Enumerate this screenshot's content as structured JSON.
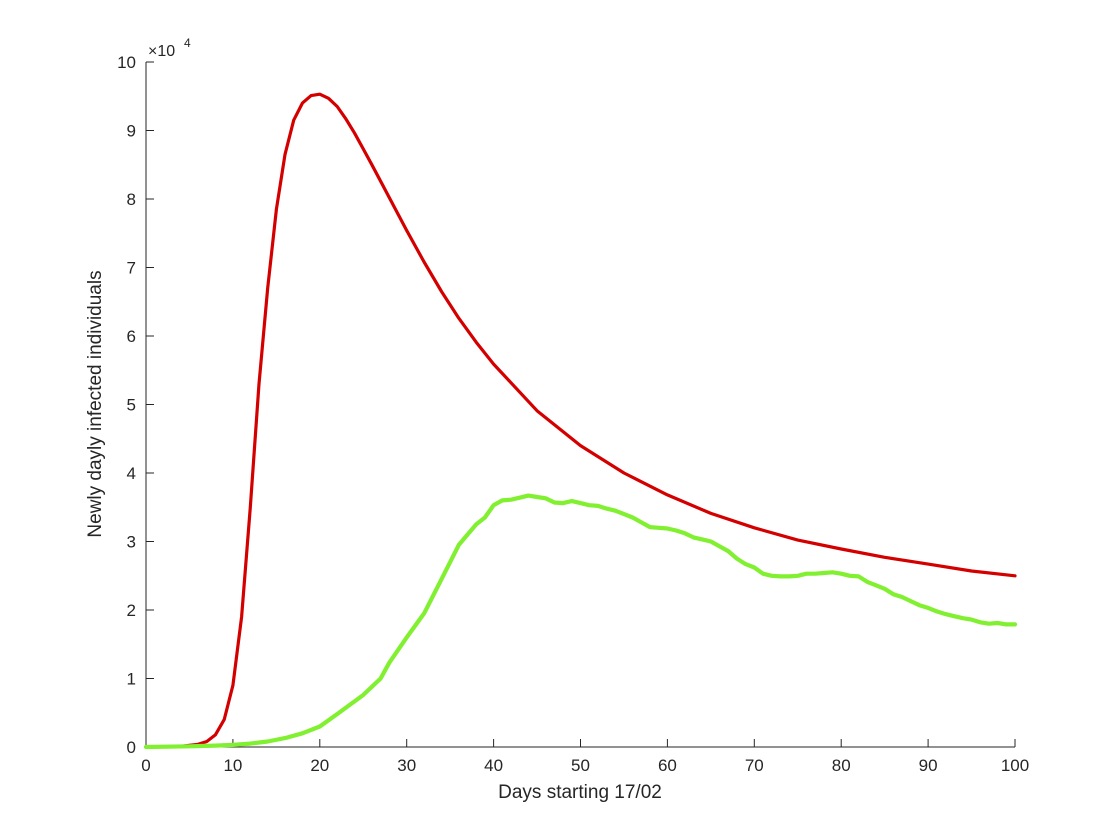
{
  "chart_data": {
    "type": "line",
    "xlabel": "Days starting 17/02",
    "ylabel": "Newly dayly infected individuals",
    "y_multiplier_base": "×10",
    "y_multiplier_exp": "4",
    "xlim": [
      0,
      100
    ],
    "ylim": [
      0,
      100000
    ],
    "x_ticks": [
      0,
      10,
      20,
      30,
      40,
      50,
      60,
      70,
      80,
      90,
      100
    ],
    "x_tick_labels": [
      "0",
      "10",
      "20",
      "30",
      "40",
      "50",
      "60",
      "70",
      "80",
      "90",
      "100"
    ],
    "y_ticks": [
      0,
      10000,
      20000,
      30000,
      40000,
      50000,
      60000,
      70000,
      80000,
      90000,
      100000
    ],
    "y_tick_labels": [
      "0",
      "1",
      "2",
      "3",
      "4",
      "5",
      "6",
      "7",
      "8",
      "9",
      "10"
    ],
    "grid": false,
    "series": [
      {
        "color": "#d40000",
        "x": [
          0,
          4,
          6,
          7,
          8,
          9,
          10,
          11,
          12,
          13,
          14,
          15,
          16,
          17,
          18,
          19,
          20,
          21,
          22,
          23,
          24,
          25,
          26,
          28,
          30,
          32,
          34,
          36,
          38,
          40,
          45,
          50,
          55,
          60,
          65,
          70,
          75,
          80,
          85,
          90,
          95,
          100
        ],
        "y": [
          0,
          100,
          400,
          800,
          1800,
          4000,
          9000,
          19000,
          35000,
          53000,
          67000,
          78500,
          86500,
          91500,
          94000,
          95100,
          95300,
          94700,
          93500,
          91700,
          89600,
          87300,
          85000,
          80200,
          75400,
          70800,
          66500,
          62600,
          59100,
          55900,
          49100,
          44000,
          40000,
          36800,
          34100,
          32000,
          30200,
          28900,
          27700,
          26700,
          25700,
          25000
        ]
      },
      {
        "color": "#80f030",
        "x": [
          0,
          5,
          8,
          10,
          12,
          14,
          16,
          18,
          20,
          22,
          25,
          27,
          28,
          30,
          32,
          34,
          36,
          38,
          39,
          40,
          41,
          42,
          43,
          44,
          45,
          46,
          47,
          48,
          49,
          50,
          51,
          52,
          53,
          54,
          55,
          56,
          57,
          58,
          59,
          60,
          61,
          62,
          63,
          64,
          65,
          66,
          67,
          68,
          69,
          70,
          71,
          72,
          73,
          74,
          75,
          76,
          77,
          78,
          79,
          80,
          81,
          82,
          83,
          84,
          85,
          86,
          87,
          88,
          89,
          90,
          91,
          92,
          93,
          94,
          95,
          96,
          97,
          98,
          99,
          100
        ],
        "y": [
          0,
          100,
          200,
          300,
          500,
          800,
          1300,
          2000,
          3000,
          4800,
          7600,
          10000,
          12300,
          16000,
          19500,
          24500,
          29500,
          32500,
          33500,
          35300,
          36000,
          36100,
          36400,
          36700,
          36500,
          36300,
          35700,
          35600,
          35900,
          35600,
          35300,
          35200,
          34800,
          34500,
          34000,
          33500,
          32800,
          32100,
          32000,
          31900,
          31600,
          31200,
          30600,
          30300,
          30000,
          29300,
          28600,
          27500,
          26700,
          26200,
          25300,
          25000,
          24900,
          24900,
          25000,
          25300,
          25300,
          25400,
          25500,
          25300,
          25000,
          24900,
          24100,
          23600,
          23100,
          22300,
          21900,
          21300,
          20700,
          20300,
          19800,
          19400,
          19100,
          18800,
          18600,
          18200,
          18000,
          18100,
          17900,
          17900
        ]
      }
    ]
  }
}
